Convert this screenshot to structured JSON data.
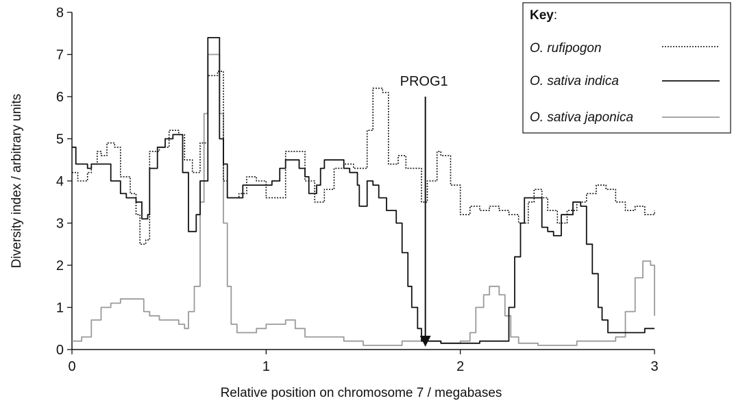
{
  "chart_data": {
    "type": "line",
    "xlabel": "Relative position on chromosome 7 / megabases",
    "ylabel": "Diversity index / arbitrary units",
    "xlim": [
      0,
      3
    ],
    "ylim": [
      0,
      8
    ],
    "x_ticks": [
      0,
      1,
      2,
      3
    ],
    "y_ticks": [
      0,
      1,
      2,
      3,
      4,
      5,
      6,
      7,
      8
    ],
    "grid": false,
    "legend": {
      "title": "Key",
      "title_suffix": ":",
      "placement": "top-right"
    },
    "annotations": [
      {
        "text": "PROG1",
        "x": 1.82,
        "arrow_from_y": 6.0,
        "arrow_to_y": 0.1
      }
    ],
    "series": [
      {
        "name": "O. rufipogon",
        "style": "dotted",
        "color": "#111111",
        "points": [
          [
            0,
            4.2
          ],
          [
            0.03,
            4.0
          ],
          [
            0.08,
            4.2
          ],
          [
            0.1,
            4.4
          ],
          [
            0.13,
            4.7
          ],
          [
            0.15,
            4.6
          ],
          [
            0.18,
            4.9
          ],
          [
            0.22,
            4.8
          ],
          [
            0.25,
            4.1
          ],
          [
            0.3,
            3.7
          ],
          [
            0.33,
            3.2
          ],
          [
            0.35,
            2.5
          ],
          [
            0.38,
            2.6
          ],
          [
            0.4,
            4.7
          ],
          [
            0.45,
            4.8
          ],
          [
            0.5,
            5.2
          ],
          [
            0.55,
            5.1
          ],
          [
            0.58,
            4.5
          ],
          [
            0.62,
            4.2
          ],
          [
            0.66,
            4.9
          ],
          [
            0.7,
            6.5
          ],
          [
            0.75,
            6.6
          ],
          [
            0.78,
            4.0
          ],
          [
            0.8,
            3.6
          ],
          [
            0.86,
            3.7
          ],
          [
            0.9,
            4.1
          ],
          [
            0.95,
            4.0
          ],
          [
            1.0,
            3.6
          ],
          [
            1.05,
            3.6
          ],
          [
            1.1,
            4.7
          ],
          [
            1.15,
            4.7
          ],
          [
            1.2,
            4.0
          ],
          [
            1.25,
            3.5
          ],
          [
            1.3,
            3.8
          ],
          [
            1.35,
            4.3
          ],
          [
            1.4,
            4.4
          ],
          [
            1.45,
            4.3
          ],
          [
            1.48,
            4.3
          ],
          [
            1.52,
            5.2
          ],
          [
            1.55,
            6.2
          ],
          [
            1.6,
            6.1
          ],
          [
            1.63,
            4.4
          ],
          [
            1.68,
            4.6
          ],
          [
            1.72,
            4.3
          ],
          [
            1.76,
            4.3
          ],
          [
            1.8,
            3.5
          ],
          [
            1.83,
            4.0
          ],
          [
            1.88,
            4.7
          ],
          [
            1.9,
            4.6
          ],
          [
            1.95,
            3.9
          ],
          [
            2.0,
            3.2
          ],
          [
            2.05,
            3.4
          ],
          [
            2.1,
            3.3
          ],
          [
            2.15,
            3.4
          ],
          [
            2.2,
            3.3
          ],
          [
            2.25,
            3.2
          ],
          [
            2.3,
            3.0
          ],
          [
            2.35,
            3.5
          ],
          [
            2.38,
            3.8
          ],
          [
            2.42,
            3.6
          ],
          [
            2.45,
            3.3
          ],
          [
            2.5,
            3.0
          ],
          [
            2.55,
            3.3
          ],
          [
            2.6,
            3.5
          ],
          [
            2.65,
            3.7
          ],
          [
            2.7,
            3.9
          ],
          [
            2.75,
            3.8
          ],
          [
            2.8,
            3.5
          ],
          [
            2.85,
            3.3
          ],
          [
            2.9,
            3.4
          ],
          [
            2.95,
            3.2
          ],
          [
            3.0,
            3.3
          ]
        ]
      },
      {
        "name": "O. sativa indica",
        "style": "solid",
        "color": "#111111",
        "points": [
          [
            0,
            4.8
          ],
          [
            0.02,
            4.4
          ],
          [
            0.08,
            4.3
          ],
          [
            0.1,
            4.4
          ],
          [
            0.15,
            4.4
          ],
          [
            0.2,
            4.0
          ],
          [
            0.25,
            3.7
          ],
          [
            0.28,
            3.6
          ],
          [
            0.33,
            3.5
          ],
          [
            0.36,
            3.1
          ],
          [
            0.39,
            3.2
          ],
          [
            0.4,
            4.3
          ],
          [
            0.44,
            4.8
          ],
          [
            0.48,
            5.0
          ],
          [
            0.52,
            5.1
          ],
          [
            0.55,
            5.1
          ],
          [
            0.57,
            4.2
          ],
          [
            0.6,
            2.8
          ],
          [
            0.64,
            3.2
          ],
          [
            0.66,
            4.0
          ],
          [
            0.7,
            7.4
          ],
          [
            0.74,
            7.4
          ],
          [
            0.76,
            5.0
          ],
          [
            0.78,
            4.4
          ],
          [
            0.8,
            3.6
          ],
          [
            0.84,
            3.6
          ],
          [
            0.88,
            3.9
          ],
          [
            0.92,
            3.9
          ],
          [
            1.0,
            3.9
          ],
          [
            1.03,
            4.0
          ],
          [
            1.07,
            4.3
          ],
          [
            1.1,
            4.5
          ],
          [
            1.14,
            4.5
          ],
          [
            1.17,
            4.3
          ],
          [
            1.2,
            4.1
          ],
          [
            1.22,
            3.7
          ],
          [
            1.26,
            3.9
          ],
          [
            1.28,
            4.3
          ],
          [
            1.3,
            4.5
          ],
          [
            1.37,
            4.5
          ],
          [
            1.4,
            4.3
          ],
          [
            1.43,
            4.2
          ],
          [
            1.47,
            3.9
          ],
          [
            1.48,
            3.4
          ],
          [
            1.52,
            4.0
          ],
          [
            1.55,
            3.9
          ],
          [
            1.58,
            3.6
          ],
          [
            1.62,
            3.3
          ],
          [
            1.67,
            3.0
          ],
          [
            1.7,
            2.3
          ],
          [
            1.73,
            1.5
          ],
          [
            1.75,
            1.0
          ],
          [
            1.78,
            0.5
          ],
          [
            1.8,
            0.2
          ],
          [
            1.83,
            0.2
          ],
          [
            1.88,
            0.2
          ],
          [
            1.9,
            0.15
          ],
          [
            2.0,
            0.15
          ],
          [
            2.1,
            0.2
          ],
          [
            2.2,
            0.2
          ],
          [
            2.22,
            0.2
          ],
          [
            2.25,
            1.0
          ],
          [
            2.28,
            2.2
          ],
          [
            2.31,
            3.0
          ],
          [
            2.33,
            3.6
          ],
          [
            2.4,
            3.6
          ],
          [
            2.42,
            2.9
          ],
          [
            2.45,
            2.8
          ],
          [
            2.48,
            2.7
          ],
          [
            2.52,
            3.2
          ],
          [
            2.58,
            3.5
          ],
          [
            2.62,
            3.4
          ],
          [
            2.65,
            2.5
          ],
          [
            2.68,
            1.8
          ],
          [
            2.71,
            1.0
          ],
          [
            2.73,
            0.7
          ],
          [
            2.76,
            0.4
          ],
          [
            2.8,
            0.4
          ],
          [
            2.85,
            0.4
          ],
          [
            2.9,
            0.4
          ],
          [
            2.95,
            0.5
          ],
          [
            3.0,
            0.5
          ]
        ]
      },
      {
        "name": "O. sativa japonica",
        "style": "solid",
        "color": "#9a9a9a",
        "points": [
          [
            0,
            0.2
          ],
          [
            0.05,
            0.3
          ],
          [
            0.1,
            0.7
          ],
          [
            0.15,
            1.0
          ],
          [
            0.2,
            1.1
          ],
          [
            0.25,
            1.2
          ],
          [
            0.35,
            1.2
          ],
          [
            0.37,
            0.9
          ],
          [
            0.4,
            0.8
          ],
          [
            0.45,
            0.7
          ],
          [
            0.5,
            0.7
          ],
          [
            0.55,
            0.6
          ],
          [
            0.58,
            0.5
          ],
          [
            0.6,
            0.9
          ],
          [
            0.63,
            1.5
          ],
          [
            0.66,
            3.5
          ],
          [
            0.68,
            5.6
          ],
          [
            0.7,
            7.0
          ],
          [
            0.74,
            7.0
          ],
          [
            0.76,
            5.6
          ],
          [
            0.78,
            3.0
          ],
          [
            0.8,
            1.5
          ],
          [
            0.82,
            0.6
          ],
          [
            0.85,
            0.4
          ],
          [
            0.9,
            0.4
          ],
          [
            0.95,
            0.5
          ],
          [
            1.0,
            0.6
          ],
          [
            1.1,
            0.7
          ],
          [
            1.15,
            0.5
          ],
          [
            1.2,
            0.3
          ],
          [
            1.3,
            0.3
          ],
          [
            1.4,
            0.2
          ],
          [
            1.5,
            0.1
          ],
          [
            1.6,
            0.1
          ],
          [
            1.7,
            0.2
          ],
          [
            1.8,
            0.2
          ],
          [
            1.85,
            0.2
          ],
          [
            1.9,
            0.15
          ],
          [
            2.0,
            0.2
          ],
          [
            2.05,
            0.4
          ],
          [
            2.08,
            1.0
          ],
          [
            2.12,
            1.3
          ],
          [
            2.15,
            1.5
          ],
          [
            2.2,
            1.3
          ],
          [
            2.23,
            0.8
          ],
          [
            2.26,
            0.3
          ],
          [
            2.3,
            0.15
          ],
          [
            2.4,
            0.1
          ],
          [
            2.5,
            0.1
          ],
          [
            2.6,
            0.2
          ],
          [
            2.7,
            0.2
          ],
          [
            2.8,
            0.3
          ],
          [
            2.85,
            0.9
          ],
          [
            2.9,
            1.7
          ],
          [
            2.94,
            2.1
          ],
          [
            2.98,
            2.0
          ],
          [
            3.0,
            0.8
          ]
        ]
      }
    ]
  }
}
